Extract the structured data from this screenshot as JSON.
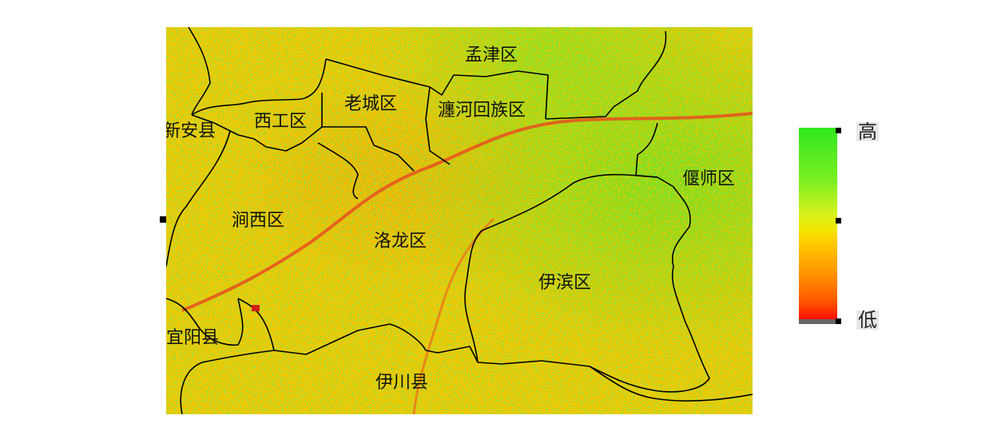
{
  "map": {
    "regions": [
      {
        "id": "mengjin",
        "name": "孟津区"
      },
      {
        "id": "laocheng",
        "name": "老城区"
      },
      {
        "id": "chanhe",
        "name": "瀍河回族区"
      },
      {
        "id": "xigong",
        "name": "西工区"
      },
      {
        "id": "xinan",
        "name": "新安县"
      },
      {
        "id": "jianxi",
        "name": "涧西区"
      },
      {
        "id": "luolong",
        "name": "洛龙区"
      },
      {
        "id": "yanshi",
        "name": "偃师区"
      },
      {
        "id": "yibin",
        "name": "伊滨区"
      },
      {
        "id": "yiyang",
        "name": "宜阳县"
      },
      {
        "id": "yichuan",
        "name": "伊川县"
      }
    ],
    "colors": {
      "high": "#2fe81f",
      "mid": "#f3e500",
      "low": "#ff0000",
      "river": "#e8501f",
      "boundary": "#000000"
    }
  },
  "legend": {
    "high_label": "高",
    "low_label": "低"
  }
}
